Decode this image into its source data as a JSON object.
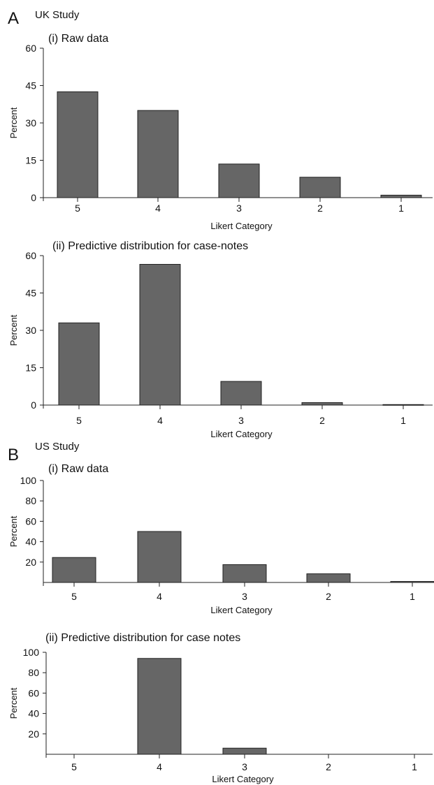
{
  "panels": [
    {
      "letter": "A",
      "title": "UK Study"
    },
    {
      "letter": "B",
      "title": "US Study"
    }
  ],
  "colors": {
    "bar": "#666666",
    "bar_stroke": "#222222",
    "axis": "#222222"
  },
  "chart_data": [
    {
      "type": "bar",
      "title": "(i) Raw data",
      "xlabel": "Likert Category",
      "ylabel": "Percent",
      "categories": [
        "5",
        "4",
        "3",
        "2",
        "1"
      ],
      "values": [
        42.5,
        35,
        13.5,
        8.2,
        1
      ],
      "ylim": [
        0,
        60
      ],
      "yticks": [
        0,
        15,
        30,
        45,
        60
      ],
      "grid": false
    },
    {
      "type": "bar",
      "title": "(ii) Predictive distribution for case-notes",
      "xlabel": "Likert Category",
      "ylabel": "Percent",
      "categories": [
        "5",
        "4",
        "3",
        "2",
        "1"
      ],
      "values": [
        33,
        56.5,
        9.5,
        1,
        0.2
      ],
      "ylim": [
        0,
        60
      ],
      "yticks": [
        0,
        15,
        30,
        45,
        60
      ],
      "grid": false
    },
    {
      "type": "bar",
      "title": "(i) Raw data",
      "xlabel": "Likert Category",
      "ylabel": "Percent",
      "categories": [
        "5",
        "4",
        "3",
        "2",
        "1"
      ],
      "values": [
        24.5,
        50,
        17.5,
        8.5,
        1
      ],
      "ylim": [
        0,
        100
      ],
      "yticks": [
        20,
        40,
        60,
        80,
        100
      ],
      "grid": false
    },
    {
      "type": "bar",
      "title": "(ii) Predictive distribution for case notes",
      "xlabel": "Likert Category",
      "ylabel": "Percent",
      "categories": [
        "5",
        "4",
        "3",
        "2",
        "1"
      ],
      "values": [
        0,
        94,
        6,
        0,
        0
      ],
      "ylim": [
        0,
        100
      ],
      "yticks": [
        20,
        40,
        60,
        80,
        100
      ],
      "grid": false
    }
  ]
}
